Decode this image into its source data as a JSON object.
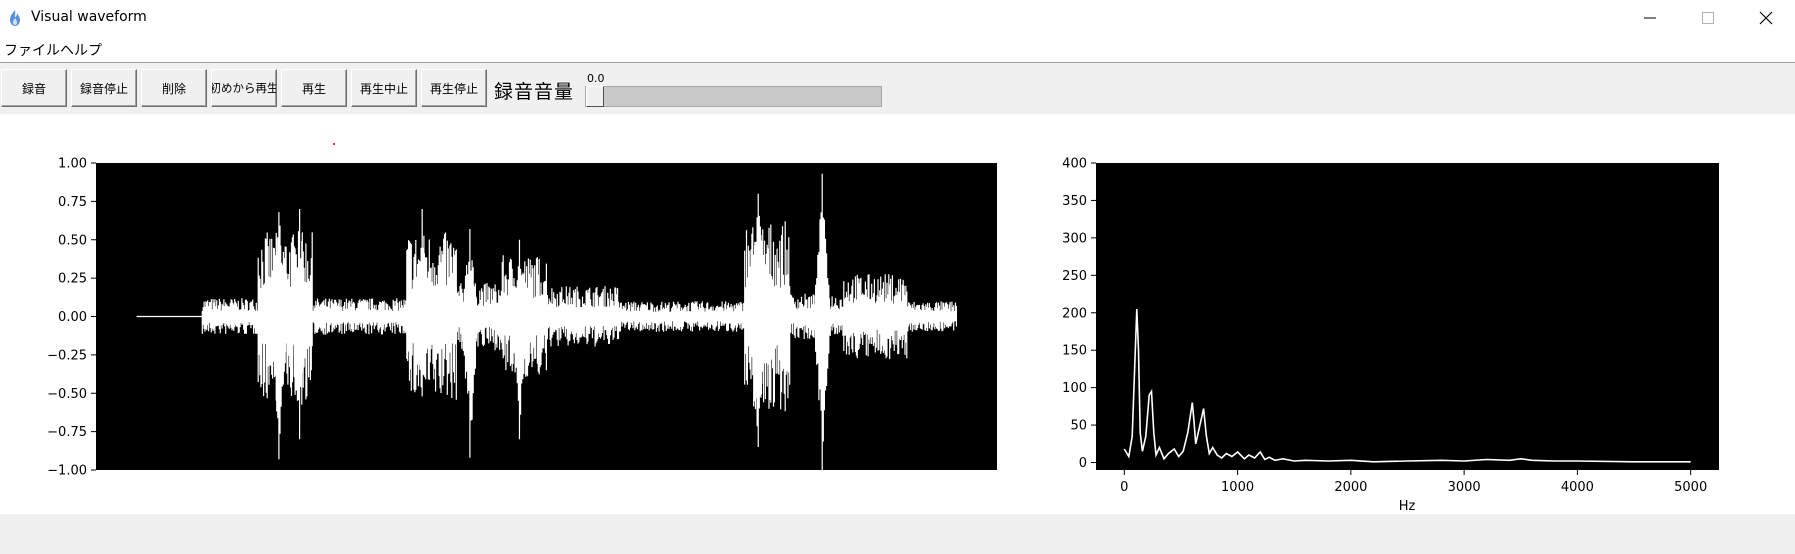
{
  "window": {
    "title": "Visual waveform",
    "icon": "flame-app-icon",
    "controls": [
      "minimize-icon",
      "maximize-icon",
      "close-icon"
    ]
  },
  "menu": {
    "file": "ファイル",
    "help": "ヘルプ"
  },
  "toolbar": {
    "buttons": {
      "record": "録音",
      "stop_record": "録音停止",
      "delete": "削除",
      "play_from_start": "初めから再生",
      "play": "再生",
      "pause": "再生中止",
      "stop": "再生停止"
    },
    "volume_label": "録音音量",
    "volume_value": "0.0",
    "volume_fraction": 0.0
  },
  "chart_data": [
    {
      "type": "line",
      "title": "",
      "xlabel": "",
      "ylabel": "",
      "ylim": [
        -1.0,
        1.0
      ],
      "yticks": [
        "1.00",
        "0.75",
        "0.50",
        "0.25",
        "0.00",
        "−0.25",
        "−0.50",
        "−0.75",
        "−1.00"
      ],
      "ytick_values": [
        1.0,
        0.75,
        0.5,
        0.25,
        0.0,
        -0.25,
        -0.5,
        -0.75,
        -1.0
      ],
      "background": "#000000",
      "line_color": "#ffffff",
      "xlim": [
        0,
        100
      ],
      "series": [
        {
          "name": "waveform",
          "segments": [
            {
              "x": [
                4.5,
                11.8
              ],
              "amp": 0.0
            },
            {
              "x": [
                11.8,
                18.0
              ],
              "amp": 0.12
            },
            {
              "x": [
                18.0,
                24.0
              ],
              "amp": 0.55
            },
            {
              "x": [
                24.0,
                34.5
              ],
              "amp": 0.12
            },
            {
              "x": [
                34.5,
                40.0
              ],
              "amp": 0.55
            },
            {
              "x": [
                40.0,
                45.0
              ],
              "amp": 0.22
            },
            {
              "x": [
                45.0,
                50.0
              ],
              "amp": 0.4
            },
            {
              "x": [
                50.0,
                58.0
              ],
              "amp": 0.2
            },
            {
              "x": [
                58.0,
                72.0
              ],
              "amp": 0.1
            },
            {
              "x": [
                72.0,
                77.0
              ],
              "amp": 0.62
            },
            {
              "x": [
                77.0,
                83.0
              ],
              "amp": 0.15
            },
            {
              "x": [
                83.0,
                90.0
              ],
              "amp": 0.28
            },
            {
              "x": [
                90.0,
                95.5
              ],
              "amp": 0.1
            }
          ],
          "peaks": [
            {
              "x": 20.3,
              "top": 0.68,
              "bottom": -0.93
            },
            {
              "x": 22.6,
              "top": 0.7,
              "bottom": -0.8
            },
            {
              "x": 36.2,
              "top": 0.7,
              "bottom": -0.52
            },
            {
              "x": 41.5,
              "top": 0.57,
              "bottom": -0.92
            },
            {
              "x": 47.0,
              "top": 0.5,
              "bottom": -0.8
            },
            {
              "x": 73.5,
              "top": 0.8,
              "bottom": -0.85
            },
            {
              "x": 80.6,
              "top": 0.93,
              "bottom": -1.0
            }
          ]
        }
      ]
    },
    {
      "type": "line",
      "title": "",
      "xlabel": "Hz",
      "ylabel": "",
      "xlim": [
        -250,
        5250
      ],
      "ylim": [
        -10,
        400
      ],
      "xticks": [
        "0",
        "1000",
        "2000",
        "3000",
        "4000",
        "5000"
      ],
      "xtick_values": [
        0,
        1000,
        2000,
        3000,
        4000,
        5000
      ],
      "yticks": [
        "0",
        "50",
        "100",
        "150",
        "200",
        "250",
        "300",
        "350",
        "400"
      ],
      "ytick_values": [
        0,
        50,
        100,
        150,
        200,
        250,
        300,
        350,
        400
      ],
      "background": "#000000",
      "line_color": "#ffffff",
      "series": [
        {
          "name": "spectrum",
          "x": [
            0,
            40,
            70,
            90,
            110,
            125,
            140,
            160,
            190,
            220,
            240,
            260,
            280,
            310,
            350,
            390,
            440,
            480,
            520,
            560,
            600,
            615,
            630,
            660,
            700,
            725,
            750,
            780,
            820,
            860,
            900,
            950,
            1000,
            1060,
            1100,
            1150,
            1200,
            1240,
            1280,
            1330,
            1400,
            1500,
            1600,
            1800,
            2000,
            2200,
            2500,
            2800,
            3000,
            3200,
            3400,
            3500,
            3600,
            3800,
            4000,
            4500,
            5000
          ],
          "y": [
            18,
            8,
            35,
            120,
            205,
            150,
            40,
            15,
            35,
            90,
            95,
            40,
            10,
            20,
            5,
            12,
            18,
            8,
            15,
            40,
            80,
            55,
            25,
            45,
            72,
            35,
            12,
            20,
            10,
            6,
            12,
            8,
            14,
            5,
            10,
            6,
            14,
            4,
            7,
            3,
            5,
            2,
            3,
            2,
            3,
            1,
            2,
            3,
            2,
            4,
            3,
            5,
            3,
            2,
            2,
            1,
            1
          ]
        }
      ]
    }
  ]
}
